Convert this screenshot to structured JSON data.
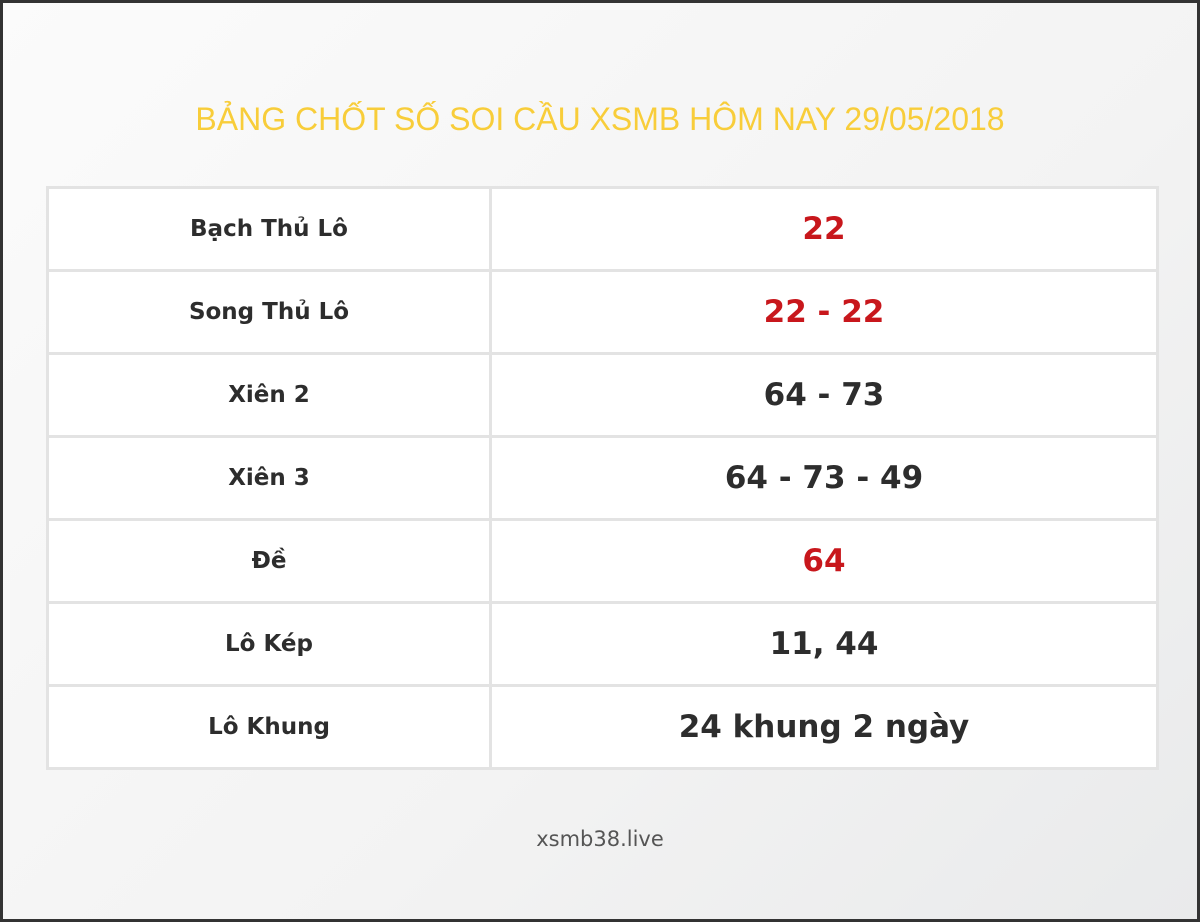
{
  "title": "BẢNG CHỐT SỐ SOI CẦU XSMB HÔM NAY 29/05/2018",
  "rows": [
    {
      "label": "Bạch Thủ Lô",
      "value": "22",
      "highlight": true
    },
    {
      "label": "Song Thủ Lô",
      "value": "22 - 22",
      "highlight": true
    },
    {
      "label": "Xiên 2",
      "value": "64 - 73",
      "highlight": false
    },
    {
      "label": "Xiên 3",
      "value": "64 - 73 - 49",
      "highlight": false
    },
    {
      "label": "Đề",
      "value": "64",
      "highlight": true
    },
    {
      "label": "Lô Kép",
      "value": "11, 44",
      "highlight": false
    },
    {
      "label": "Lô Khung",
      "value": "24 khung 2 ngày",
      "highlight": false
    }
  ],
  "footer": "xsmb38.live",
  "colors": {
    "title": "#f8cd3a",
    "highlight": "#c8171c",
    "text": "#2d2d2d"
  }
}
